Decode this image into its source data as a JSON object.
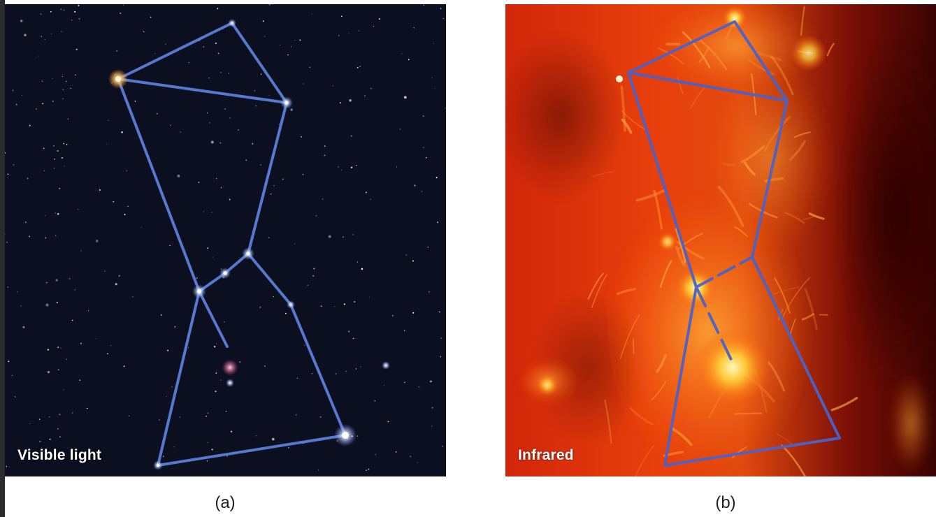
{
  "panels": [
    {
      "id": "a",
      "label": "Visible light",
      "caption": "(a)"
    },
    {
      "id": "b",
      "label": "Infrared",
      "caption": "(b)"
    }
  ],
  "colors": {
    "line": "#5b7fd8",
    "night_sky": "#0b0f1f",
    "infrared_dark": "#7a0c04",
    "infrared_bright": "#ffd23a"
  }
}
